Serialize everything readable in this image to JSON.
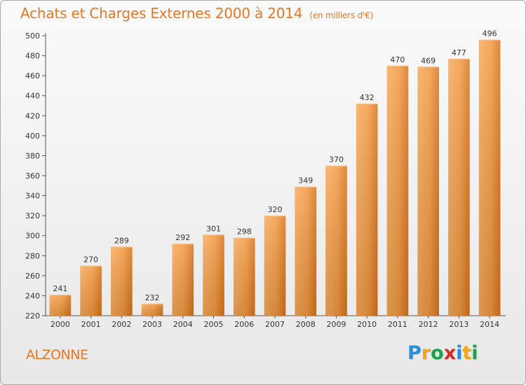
{
  "title": "Achats et Charges Externes 2000 à 2014",
  "unit_note": "(en milliers d'€)",
  "commune": "ALZONNE",
  "logo": {
    "letters": [
      "P",
      "r",
      "o",
      "x",
      "i",
      "t",
      "i"
    ],
    "colors": [
      "#2a8fd6",
      "#f2a51a",
      "#1aa34a",
      "#d42a2a",
      "#2a8fd6",
      "#f2a51a",
      "#1aa34a"
    ]
  },
  "chart_data": {
    "type": "bar",
    "categories": [
      "2000",
      "2001",
      "2002",
      "2003",
      "2004",
      "2005",
      "2006",
      "2007",
      "2008",
      "2009",
      "2010",
      "2011",
      "2012",
      "2013",
      "2014"
    ],
    "values": [
      241,
      270,
      289,
      232,
      292,
      301,
      298,
      320,
      349,
      370,
      432,
      470,
      469,
      477,
      496
    ],
    "title": "Achats et Charges Externes 2000 à 2014",
    "subtitle": "(en milliers d'€)",
    "xlabel": "",
    "ylabel": "",
    "ylim": [
      220,
      500
    ],
    "yticks": [
      220,
      240,
      260,
      280,
      300,
      320,
      340,
      360,
      380,
      400,
      420,
      440,
      460,
      480,
      500
    ],
    "grid": false,
    "bar_color": "#f0923a"
  }
}
